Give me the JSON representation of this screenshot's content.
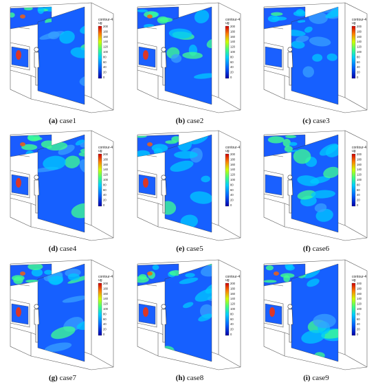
{
  "figure": {
    "colorbar": {
      "title": "contour-4",
      "unit": "ug",
      "ticks": [
        "200",
        "180",
        "160",
        "140",
        "120",
        "100",
        "80",
        "60",
        "40",
        "20",
        "0"
      ]
    },
    "panels": [
      {
        "letter": "(a)",
        "name": "case1",
        "intensity": 0.55
      },
      {
        "letter": "(b)",
        "name": "case2",
        "intensity": 0.6
      },
      {
        "letter": "(c)",
        "name": "case3",
        "intensity": 0.1
      },
      {
        "letter": "(d)",
        "name": "case4",
        "intensity": 0.5
      },
      {
        "letter": "(e)",
        "name": "case5",
        "intensity": 0.35
      },
      {
        "letter": "(f)",
        "name": "case6",
        "intensity": 0.3
      },
      {
        "letter": "(g)",
        "name": "case7",
        "intensity": 0.55
      },
      {
        "letter": "(h)",
        "name": "case8",
        "intensity": 0.35
      },
      {
        "letter": "(i)",
        "name": "case9",
        "intensity": 0.35
      }
    ]
  }
}
